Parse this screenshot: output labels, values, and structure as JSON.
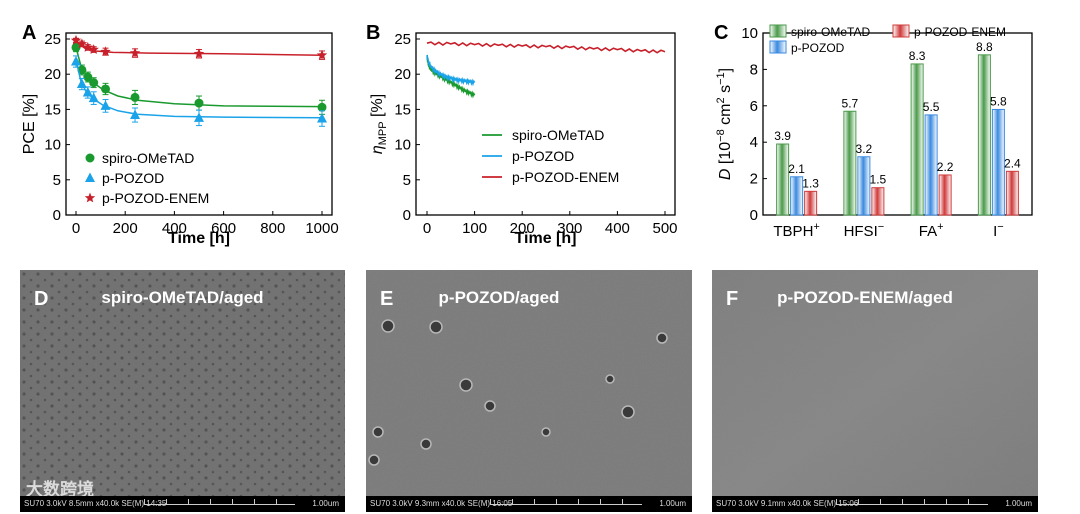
{
  "chart_data": [
    {
      "panel": "A",
      "type": "scatter",
      "xlabel": "Time [h]",
      "ylabel": "PCE [%]",
      "xlim": [
        0,
        1000
      ],
      "ylim": [
        0,
        25
      ],
      "xticks": [
        0,
        200,
        400,
        600,
        800,
        1000
      ],
      "yticks": [
        0,
        5,
        10,
        15,
        20,
        25
      ],
      "legend_position": "bottom-left",
      "series": [
        {
          "name": "spiro-OMeTAD",
          "color": "#1a9a2e",
          "marker": "circle",
          "x": [
            0,
            24,
            48,
            72,
            120,
            240,
            500,
            1000
          ],
          "y": [
            23.8,
            20.6,
            19.6,
            18.8,
            17.9,
            16.7,
            15.9,
            15.3
          ],
          "err": [
            0.6,
            0.7,
            0.7,
            0.7,
            0.8,
            1.0,
            1.0,
            1.0
          ],
          "fit": [
            [
              0,
              23.8
            ],
            [
              20,
              21.2
            ],
            [
              40,
              19.9
            ],
            [
              70,
              18.8
            ],
            [
              110,
              17.8
            ],
            [
              170,
              16.9
            ],
            [
              250,
              16.3
            ],
            [
              400,
              15.8
            ],
            [
              600,
              15.5
            ],
            [
              1000,
              15.4
            ]
          ]
        },
        {
          "name": "p-POZOD",
          "color": "#1aa3e8",
          "marker": "triangle",
          "x": [
            0,
            24,
            48,
            72,
            120,
            240,
            500,
            1000
          ],
          "y": [
            21.8,
            18.6,
            17.4,
            16.6,
            15.5,
            14.2,
            13.8,
            13.7
          ],
          "err": [
            0.8,
            0.8,
            0.8,
            0.9,
            0.9,
            1.0,
            1.1,
            1.1
          ],
          "fit": [
            [
              0,
              22.0
            ],
            [
              20,
              19.0
            ],
            [
              40,
              17.6
            ],
            [
              70,
              16.5
            ],
            [
              110,
              15.6
            ],
            [
              170,
              14.8
            ],
            [
              250,
              14.3
            ],
            [
              400,
              14.0
            ],
            [
              600,
              13.9
            ],
            [
              1000,
              13.8
            ]
          ]
        },
        {
          "name": "p-POZOD-ENEM",
          "color": "#c8202a",
          "marker": "star",
          "x": [
            0,
            24,
            48,
            72,
            120,
            240,
            500,
            1000
          ],
          "y": [
            24.8,
            24.3,
            23.8,
            23.5,
            23.2,
            23.0,
            22.9,
            22.7
          ],
          "err": [
            0.3,
            0.4,
            0.4,
            0.4,
            0.5,
            0.6,
            0.6,
            0.6
          ],
          "fit": [
            [
              0,
              24.8
            ],
            [
              20,
              24.1
            ],
            [
              40,
              23.6
            ],
            [
              80,
              23.3
            ],
            [
              150,
              23.1
            ],
            [
              300,
              23.0
            ],
            [
              600,
              22.9
            ],
            [
              1000,
              22.7
            ]
          ]
        }
      ]
    },
    {
      "panel": "B",
      "type": "line",
      "xlabel": "Time [h]",
      "ylabel": "η",
      "ylabel_sub": "MPP",
      "ylabel_unit": " [%]",
      "xlim": [
        0,
        500
      ],
      "ylim": [
        0,
        25
      ],
      "xticks": [
        0,
        100,
        200,
        300,
        400,
        500
      ],
      "yticks": [
        0,
        5,
        10,
        15,
        20,
        25
      ],
      "legend_position": "center-right",
      "series": [
        {
          "name": "spiro-OMeTAD",
          "color": "#1a9a2e",
          "x": [
            0,
            2,
            5,
            10,
            20,
            30,
            40,
            50,
            60,
            70,
            80,
            90,
            100
          ],
          "y": [
            22.5,
            21.6,
            21.0,
            20.5,
            20.0,
            19.6,
            19.2,
            18.8,
            18.4,
            18.0,
            17.6,
            17.3,
            17.0
          ]
        },
        {
          "name": "p-POZOD",
          "color": "#1aa3e8",
          "x": [
            0,
            2,
            5,
            10,
            20,
            30,
            40,
            50,
            60,
            70,
            80,
            90,
            100
          ],
          "y": [
            22.6,
            22.0,
            21.4,
            20.9,
            20.3,
            19.9,
            19.6,
            19.4,
            19.2,
            19.1,
            19.0,
            18.9,
            18.8
          ]
        },
        {
          "name": "p-POZOD-ENEM",
          "color": "#c8202a",
          "x": [
            0,
            50,
            100,
            150,
            200,
            250,
            300,
            350,
            400,
            450,
            500
          ],
          "y": [
            24.4,
            24.3,
            24.2,
            24.1,
            24.0,
            23.9,
            23.8,
            23.6,
            23.5,
            23.3,
            23.2
          ]
        }
      ]
    },
    {
      "panel": "C",
      "type": "bar",
      "ylabel_italic": "D",
      "ylabel_rest": " [10",
      "ylabel_exp1": "−8",
      "ylabel_mid": " cm",
      "ylabel_exp2": "2",
      "ylabel_mid2": " s",
      "ylabel_exp3": "−1",
      "ylabel_end": "]",
      "ylim": [
        0,
        10
      ],
      "yticks": [
        0,
        2,
        4,
        6,
        8,
        10
      ],
      "legend_position": "top",
      "categories": [
        {
          "base": "TBPH",
          "sup": "+"
        },
        {
          "base": "HFSI",
          "sup": "−"
        },
        {
          "base": "FA",
          "sup": "+"
        },
        {
          "base": "I",
          "sup": "−"
        }
      ],
      "series": [
        {
          "name": "spiro-OMeTAD",
          "color": "#4a9a4a",
          "values": [
            3.9,
            5.7,
            8.3,
            8.8
          ]
        },
        {
          "name": "p-POZOD",
          "color": "#3a8ae0",
          "values": [
            2.1,
            3.2,
            5.5,
            5.8
          ]
        },
        {
          "name": "p-POZOD-ENEM",
          "color": "#d03a3a",
          "values": [
            1.3,
            1.5,
            2.2,
            2.4
          ]
        }
      ],
      "value_labels": [
        [
          "3.9",
          "5.7",
          "8.3",
          "8.8"
        ],
        [
          "2.1",
          "3.2",
          "5.5",
          "5.8"
        ],
        [
          "1.3",
          "1.5",
          "2.2",
          "2.4"
        ]
      ]
    }
  ],
  "panels": {
    "a_label": "A",
    "b_label": "B",
    "c_label": "C"
  },
  "sem_images": [
    {
      "label": "D",
      "title": "spiro-OMeTAD/aged",
      "meta": "SU70 3.0kV 8.5mm x40.0k SE(M) 14:35",
      "scale": "1.00um"
    },
    {
      "label": "E",
      "title": "p-POZOD/aged",
      "meta": "SU70 3.0kV 9.3mm x40.0k SE(M) 16:05",
      "scale": "1.00um"
    },
    {
      "label": "F",
      "title": "p-POZOD-ENEM/aged",
      "meta": "SU70 3.0kV 9.1mm x40.0k SE(M) 15:06",
      "scale": "1.00um"
    }
  ],
  "watermark": "大数跨境"
}
